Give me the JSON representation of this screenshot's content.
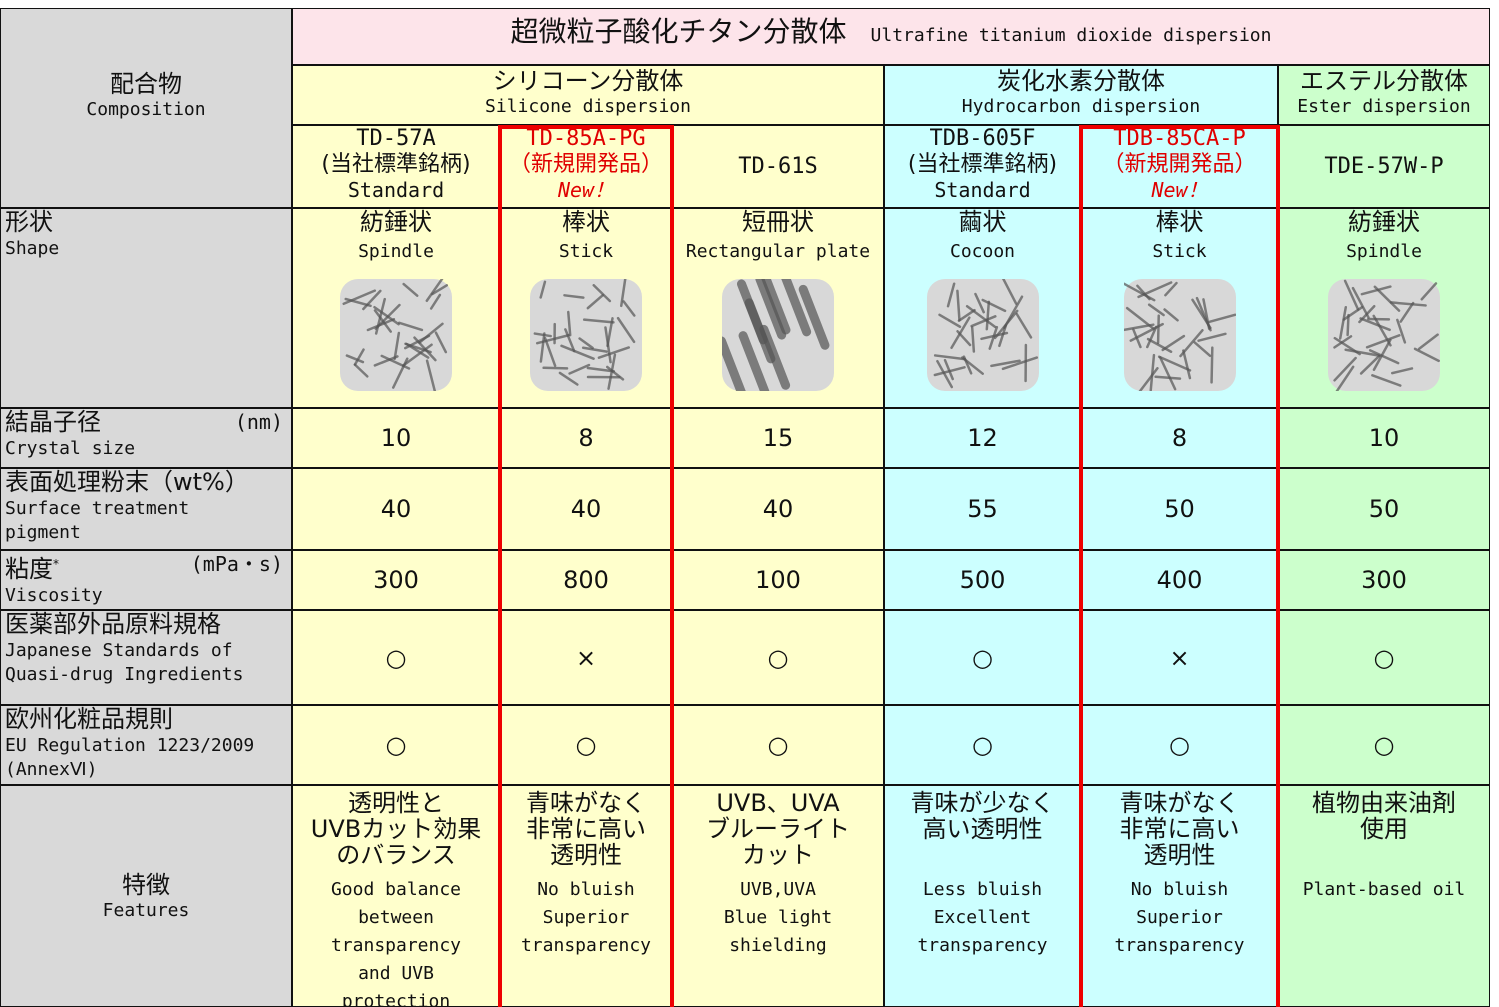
{
  "title": {
    "ja": "超微粒子酸化チタン分散体",
    "en": "Ultrafine titanium dioxide dispersion"
  },
  "composition": {
    "ja": "配合物",
    "en": "Composition"
  },
  "groups": [
    {
      "ja": "シリコーン分散体",
      "en": "Silicone dispersion",
      "products": [
        {
          "name": "TD-57A",
          "note": "(当社標準銘柄)",
          "tag": "Standard"
        },
        {
          "name": "TD-85A-PG",
          "note": "（新規開発品）",
          "tag": "New！"
        },
        {
          "name": "TD-61S"
        }
      ]
    },
    {
      "ja": "炭化水素分散体",
      "en": "Hydrocarbon dispersion",
      "products": [
        {
          "name": "TDB-605F",
          "note": "(当社標準銘柄)",
          "tag": "Standard"
        },
        {
          "name": "TDB-85CA-P",
          "note": "（新規開発品）",
          "tag": "New！"
        }
      ]
    },
    {
      "ja": "エステル分散体",
      "en": "Ester dispersion",
      "products": [
        {
          "name": "TDE-57W-P"
        }
      ]
    }
  ],
  "rows": [
    {
      "ja": "形状",
      "en": "Shape",
      "values": [
        {
          "ja": "紡錘状",
          "en": "Spindle"
        },
        {
          "ja": "棒状",
          "en": "Stick"
        },
        {
          "ja": "短冊状",
          "en": "Rectangular plate"
        },
        {
          "ja": "繭状",
          "en": "Cocoon"
        },
        {
          "ja": "棒状",
          "en": "Stick"
        },
        {
          "ja": "紡錘状",
          "en": "Spindle"
        }
      ]
    },
    {
      "ja": "結晶子径",
      "unit": "(nm)",
      "en": "Crystal size",
      "values": [
        10,
        8,
        15,
        12,
        8,
        10
      ]
    },
    {
      "ja": "表面処理粉末（wt%）",
      "en": "Surface treatment\npigment",
      "values": [
        40,
        40,
        40,
        55,
        50,
        50
      ]
    },
    {
      "ja": "粘度",
      "sup": "*",
      "unit": "(mPa・s)",
      "en": "Viscosity",
      "values": [
        300,
        800,
        100,
        500,
        400,
        300
      ]
    },
    {
      "ja": "医薬部外品原料規格",
      "en": "Japanese Standards of\nQuasi-drug Ingredients",
      "values": [
        "○",
        "×",
        "○",
        "○",
        "×",
        "○"
      ]
    },
    {
      "ja": "欧州化粧品規則",
      "en": "EU Regulation 1223/2009\n(AnnexⅥ)",
      "values": [
        "○",
        "○",
        "○",
        "○",
        "○",
        "○"
      ]
    },
    {
      "ja": "特徴",
      "en": "Features",
      "values": [
        {
          "ja": "透明性と\nUVBカット効果\nのバランス",
          "en": "Good balance\nbetween\ntransparency\nand UVB\nprotection"
        },
        {
          "ja": "青味がなく\n非常に高い\n透明性",
          "en": "No bluish\nSuperior\ntransparency"
        },
        {
          "ja": "UVB、UVA\nブルーライト\nカット",
          "en": "UVB,UVA\nBlue light\nshielding"
        },
        {
          "ja": "青味が少なく\n高い透明性",
          "en": "Less bluish\nExcellent\ntransparency"
        },
        {
          "ja": "青味がなく\n非常に高い\n透明性",
          "en": "No bluish\nSuperior\ntransparency"
        },
        {
          "ja": "植物由来油剤\n使用",
          "en": "Plant-based oil"
        }
      ]
    }
  ]
}
